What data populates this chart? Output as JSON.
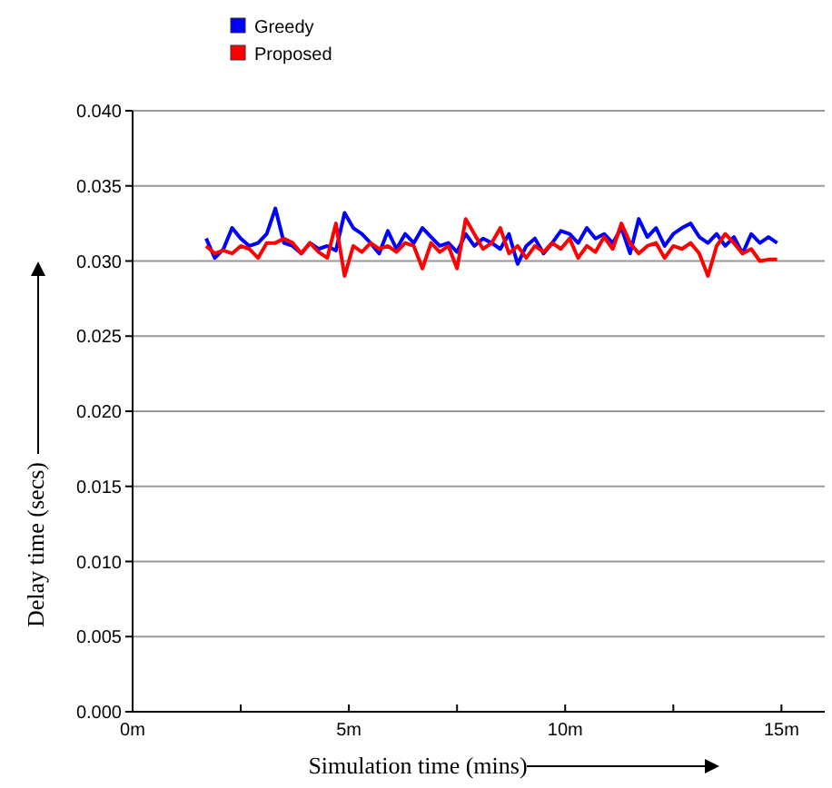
{
  "chart_data": {
    "type": "line",
    "xlabel": "Simulation time (mins)",
    "ylabel": "Delay time (secs)",
    "x": [
      1.7,
      1.9,
      2.1,
      2.3,
      2.5,
      2.7,
      2.9,
      3.1,
      3.3,
      3.5,
      3.7,
      3.9,
      4.1,
      4.3,
      4.5,
      4.7,
      4.9,
      5.1,
      5.3,
      5.5,
      5.7,
      5.9,
      6.1,
      6.3,
      6.5,
      6.7,
      6.9,
      7.1,
      7.3,
      7.5,
      7.7,
      7.9,
      8.1,
      8.3,
      8.5,
      8.7,
      8.9,
      9.1,
      9.3,
      9.5,
      9.7,
      9.9,
      10.1,
      10.3,
      10.5,
      10.7,
      10.9,
      11.1,
      11.3,
      11.5,
      11.7,
      11.9,
      12.1,
      12.3,
      12.5,
      12.7,
      12.9,
      13.1,
      13.3,
      13.5,
      13.7,
      13.9,
      14.1,
      14.3,
      14.5,
      14.7,
      14.9
    ],
    "series": [
      {
        "name": "Greedy",
        "color": "#0000ff",
        "values": [
          0.0315,
          0.0302,
          0.0308,
          0.0322,
          0.0315,
          0.031,
          0.0312,
          0.0318,
          0.0335,
          0.0312,
          0.031,
          0.0305,
          0.0312,
          0.0308,
          0.031,
          0.0307,
          0.0332,
          0.0322,
          0.0318,
          0.0312,
          0.0305,
          0.032,
          0.0308,
          0.0318,
          0.0312,
          0.0322,
          0.0316,
          0.031,
          0.0312,
          0.0306,
          0.0318,
          0.031,
          0.0315,
          0.0312,
          0.0308,
          0.0318,
          0.0298,
          0.031,
          0.0315,
          0.0305,
          0.0312,
          0.032,
          0.0318,
          0.0312,
          0.0322,
          0.0315,
          0.0318,
          0.0312,
          0.0322,
          0.0305,
          0.0328,
          0.0316,
          0.0322,
          0.031,
          0.0318,
          0.0322,
          0.0325,
          0.0316,
          0.0312,
          0.0318,
          0.031,
          0.0316,
          0.0305,
          0.0318,
          0.0312,
          0.0316,
          0.0312
        ]
      },
      {
        "name": "Proposed",
        "color": "#ff0000",
        "values": [
          0.031,
          0.0305,
          0.0307,
          0.0305,
          0.031,
          0.0308,
          0.0302,
          0.0312,
          0.0312,
          0.0315,
          0.0312,
          0.0305,
          0.0312,
          0.0306,
          0.0302,
          0.0325,
          0.029,
          0.031,
          0.0306,
          0.0312,
          0.0308,
          0.031,
          0.0306,
          0.0312,
          0.031,
          0.0295,
          0.0312,
          0.0306,
          0.031,
          0.0295,
          0.0328,
          0.0318,
          0.0308,
          0.0312,
          0.0322,
          0.0305,
          0.031,
          0.0302,
          0.031,
          0.0306,
          0.0312,
          0.0308,
          0.0315,
          0.0302,
          0.031,
          0.0306,
          0.0316,
          0.0308,
          0.0325,
          0.0312,
          0.0305,
          0.031,
          0.0312,
          0.0302,
          0.031,
          0.0308,
          0.0312,
          0.0305,
          0.029,
          0.031,
          0.0318,
          0.0312,
          0.0305,
          0.0308,
          0.03,
          0.0301,
          0.0301
        ]
      }
    ],
    "xlim": [
      0,
      16
    ],
    "xticks": [
      {
        "value": 0,
        "label": "0m"
      },
      {
        "value": 2.5,
        "label": null
      },
      {
        "value": 5,
        "label": "5m"
      },
      {
        "value": 7.5,
        "label": null
      },
      {
        "value": 10,
        "label": "10m"
      },
      {
        "value": 12.5,
        "label": null
      },
      {
        "value": 15,
        "label": "15m"
      }
    ],
    "ylim": [
      0,
      0.04
    ],
    "yticks": [
      {
        "value": 0,
        "label": "0.000"
      },
      {
        "value": 0.005,
        "label": "0.005"
      },
      {
        "value": 0.01,
        "label": "0.010"
      },
      {
        "value": 0.015,
        "label": "0.015"
      },
      {
        "value": 0.02,
        "label": "0.020"
      },
      {
        "value": 0.025,
        "label": "0.025"
      },
      {
        "value": 0.03,
        "label": "0.030"
      },
      {
        "value": 0.035,
        "label": "0.035"
      },
      {
        "value": 0.04,
        "label": "0.040"
      }
    ],
    "grid": "y",
    "legend": "top left",
    "marker": "none",
    "line_style": "solid"
  }
}
